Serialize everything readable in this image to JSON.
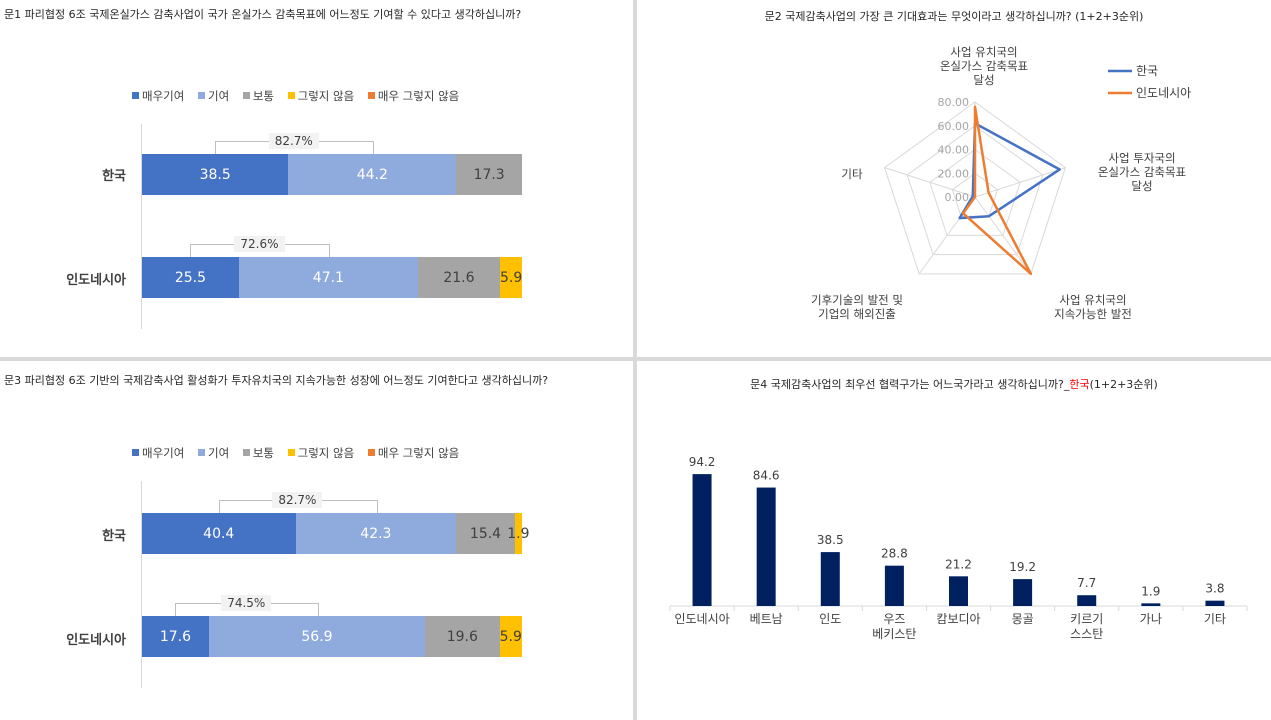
{
  "colors": {
    "very_contribute": "#4472c4",
    "contribute": "#8faadc",
    "neutral": "#a5a5a5",
    "not": "#ffc000",
    "not_at_all": "#ed7d31",
    "korea_line": "#4472c4",
    "indonesia_line": "#ed7d31",
    "column": "#002060",
    "red_text": "#ff0000"
  },
  "legend": [
    "매우기여",
    "기여",
    "보통",
    "그렇지 않음",
    "매우 그렇지 않음"
  ],
  "q1": {
    "title": "문1 파리협정 6조 국제온실가스 감축사업이 국가 온실가스 감축목표에 어느정도 기여할 수 있다고 생각하십니까?",
    "chart_data": {
      "type": "bar",
      "orientation": "horizontal-stacked",
      "categories": [
        "한국",
        "인도네시아"
      ],
      "series": [
        {
          "name": "매우기여",
          "values": [
            38.5,
            25.5
          ]
        },
        {
          "name": "기여",
          "values": [
            44.2,
            47.1
          ]
        },
        {
          "name": "보통",
          "values": [
            17.3,
            21.6
          ]
        },
        {
          "name": "그렇지 않음",
          "values": [
            0,
            5.9
          ]
        },
        {
          "name": "매우 그렇지 않음",
          "values": [
            0,
            0
          ]
        }
      ],
      "brackets": [
        "82.7%",
        "72.6%"
      ]
    }
  },
  "q2": {
    "title": "문2 국제감축사업의 가장 큰 기대효과는 무엇이라고 생각하십니까? (1+2+3순위)",
    "chart_data": {
      "type": "radar",
      "axes": [
        "사업 유치국의 온실가스 감축목표 달성",
        "사업 투자국의 온실가스 감축목표 달성",
        "사업 유치국의 지속가능한 발전",
        "기후기술의 발전 및 기업의 해외진출",
        "기타"
      ],
      "axis_label_lines": [
        [
          "사업 유치국의",
          "온실가스 감축목표",
          "달성"
        ],
        [
          "사업 투자국의",
          "온실가스 감축목표",
          "달성"
        ],
        [
          "사업 유치국의",
          "지속가능한 발전"
        ],
        [
          "기후기술의 발전 및",
          "기업의 해외진출"
        ],
        [
          "기타"
        ]
      ],
      "ticks": [
        "0.00",
        "20.00",
        "40.00",
        "60.00",
        "80.00"
      ],
      "range": [
        0,
        80
      ],
      "series": [
        {
          "name": "한국",
          "values": [
            62,
            75,
            20,
            22,
            2
          ]
        },
        {
          "name": "인도네시아",
          "values": [
            76,
            12,
            80,
            17,
            0
          ]
        }
      ]
    }
  },
  "q3": {
    "title": "문3 파리협정 6조 기반의 국제감축사업 활성화가 투자유치국의 지속가능한 성장에 어느정도 기여한다고 생각하십니까?",
    "chart_data": {
      "type": "bar",
      "orientation": "horizontal-stacked",
      "categories": [
        "한국",
        "인도네시아"
      ],
      "series": [
        {
          "name": "매우기여",
          "values": [
            40.4,
            17.6
          ]
        },
        {
          "name": "기여",
          "values": [
            42.3,
            56.9
          ]
        },
        {
          "name": "보통",
          "values": [
            15.4,
            19.6
          ]
        },
        {
          "name": "그렇지 않음",
          "values": [
            1.9,
            5.9
          ]
        },
        {
          "name": "매우 그렇지 않음",
          "values": [
            0,
            0
          ]
        }
      ],
      "brackets": [
        "82.7%",
        "74.5%"
      ]
    }
  },
  "q4": {
    "title_prefix": "문4 국제감축사업의 최우선 협력구가는 어느국가라고 생각하십니까?_",
    "title_red": "한국",
    "title_suffix": "(1+2+3순위)",
    "chart_data": {
      "type": "bar",
      "categories": [
        "인도네시아",
        "베트남",
        "인도",
        "우즈 베키스탄",
        "캄보디아",
        "몽골",
        "키르기 스스탄",
        "가나",
        "기타"
      ],
      "category_lines": [
        [
          "인도네시아"
        ],
        [
          "베트남"
        ],
        [
          "인도"
        ],
        [
          "우즈",
          "베키스탄"
        ],
        [
          "캄보디아"
        ],
        [
          "몽골"
        ],
        [
          "키르기",
          "스스탄"
        ],
        [
          "가나"
        ],
        [
          "기타"
        ]
      ],
      "values": [
        94.2,
        84.6,
        38.5,
        28.8,
        21.2,
        19.2,
        7.7,
        1.9,
        3.8
      ],
      "ylim": [
        0,
        100
      ]
    }
  }
}
